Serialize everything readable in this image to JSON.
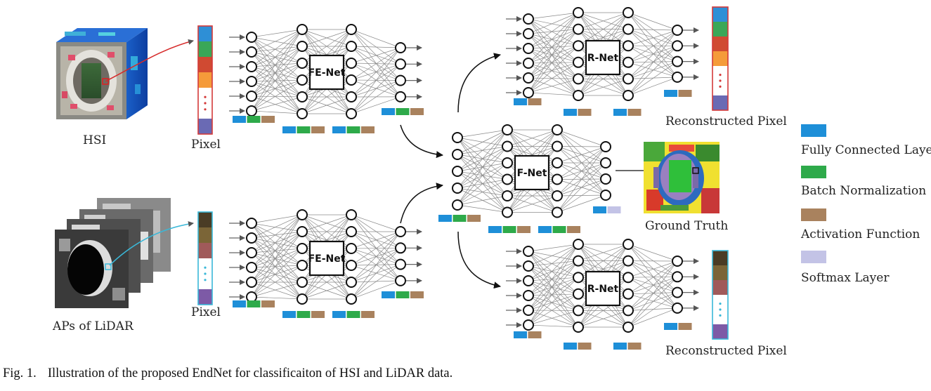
{
  "inputs": {
    "hsi_label": "HSI",
    "lidar_label": "APs of LiDAR",
    "pixel_label": "Pixel"
  },
  "networks": {
    "fe_net": "FE-Net",
    "f_net": "F-Net",
    "r_net": "R-Net"
  },
  "outputs": {
    "reconstructed_label": "Reconstructed Pixel",
    "ground_truth_label": "Ground Truth"
  },
  "legend": [
    {
      "label": "Fully Connected Layer",
      "color": "#1e8fd8"
    },
    {
      "label": "Batch Normalization",
      "color": "#2eaa4a"
    },
    {
      "label": "Activation Function",
      "color": "#a9825e"
    },
    {
      "label": "Softmax Layer",
      "color": "#c3c3e6"
    }
  ],
  "caption": {
    "fig": "Fig. 1.",
    "text": "Illustration of the proposed EndNet for classificaiton of HSI and LiDAR data."
  },
  "colors": {
    "hsi_pixel": [
      "#2e8fd6",
      "#3aa757",
      "#d04a32",
      "#f59b3a",
      "#ffffff",
      "#6a6ab4"
    ],
    "lidar_pixel": [
      "#4a3c25",
      "#7b6537",
      "#a05a5a",
      "#ffffff",
      "#7d5aa6"
    ],
    "hsi_border": "#d43a3a",
    "lidar_border": "#3ab8d8",
    "fc": "#1e8fd8",
    "bn": "#2eaa4a",
    "act": "#a9825e",
    "softmax": "#c3c3e6"
  }
}
